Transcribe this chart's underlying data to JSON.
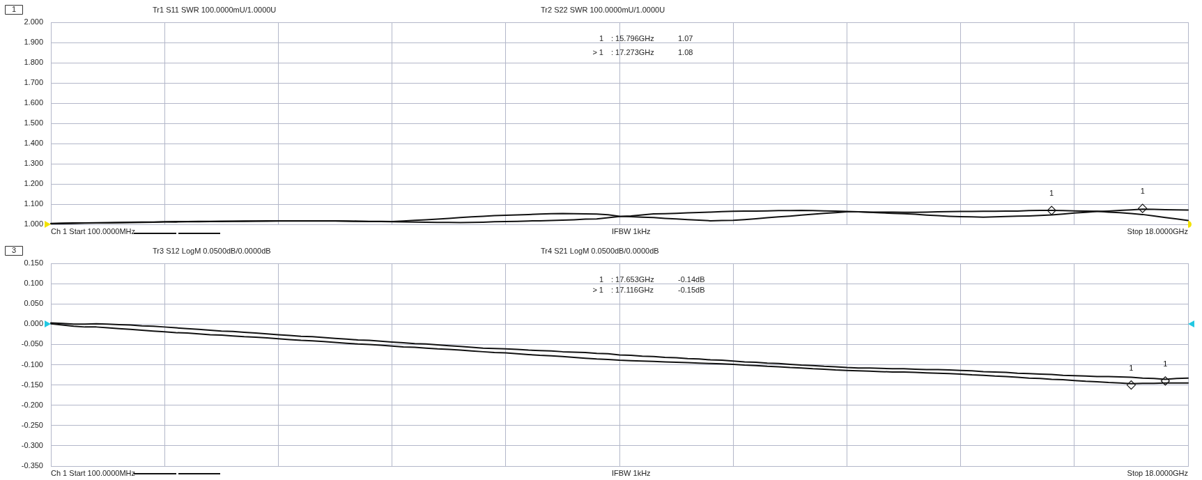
{
  "chart_data": [
    {
      "type": "line",
      "annotations": [
        "1",
        "Tr1 S11 SWR 100.0000mU/1.0000U",
        "Tr2 S22 SWR 100.0000mU/1.0000U",
        "1 : 15.796GHz 1.07",
        "> 1 : 17.273GHz 1.08",
        "Ch 1 Start 100.0000MHz",
        "IFBW 1kHz",
        "Stop 18.0000GHz"
      ],
      "categories": [
        null,
        null,
        null,
        null,
        null,
        null,
        null,
        null,
        null,
        null,
        null,
        null,
        null,
        null,
        null,
        null,
        null,
        null,
        null,
        null,
        null,
        null,
        null,
        null,
        null,
        null,
        null,
        null,
        null,
        null,
        null,
        null,
        null,
        null,
        null,
        null,
        null,
        null,
        null,
        null,
        null,
        null,
        null,
        null,
        null,
        null,
        null,
        null,
        null,
        null,
        null,
        null,
        null,
        null,
        null,
        null,
        null,
        null,
        null,
        null,
        null,
        null,
        null,
        null,
        null,
        null,
        null,
        null,
        null,
        null,
        null,
        null,
        null,
        null,
        null,
        null,
        null,
        null,
        null,
        null,
        null,
        null,
        null,
        null,
        null,
        null,
        null,
        null,
        null,
        null,
        null,
        null,
        null,
        null,
        null,
        null,
        null,
        null,
        null,
        null,
        null
      ],
      "series": [
        {
          "color": "#111111",
          "values": [
            1.006,
            1.007,
            1.008,
            1.008,
            1.009,
            1.01,
            1.011,
            1.012,
            1.013,
            1.013,
            1.014,
            1.015,
            1.015,
            1.016,
            1.016,
            1.017,
            1.017,
            1.018,
            1.018,
            1.019,
            1.019,
            1.019,
            1.019,
            1.019,
            1.019,
            1.019,
            1.018,
            1.017,
            1.016,
            1.016,
            1.015,
            1.018,
            1.021,
            1.024,
            1.027,
            1.031,
            1.035,
            1.038,
            1.041,
            1.044,
            1.046,
            1.048,
            1.05,
            1.052,
            1.054,
            1.055,
            1.054,
            1.053,
            1.052,
            1.049,
            1.041,
            1.039,
            1.037,
            1.035,
            1.031,
            1.028,
            1.025,
            1.022,
            1.019,
            1.02,
            1.021,
            1.025,
            1.029,
            1.034,
            1.038,
            1.042,
            1.047,
            1.051,
            1.056,
            1.059,
            1.063,
            1.063,
            1.062,
            1.062,
            1.062,
            1.061,
            1.061,
            1.062,
            1.063,
            1.064,
            1.065,
            1.065,
            1.066,
            1.066,
            1.067,
            1.067,
            1.069,
            1.07,
            1.07,
            1.069,
            1.068,
            1.067,
            1.066,
            1.062,
            1.059,
            1.055,
            1.05,
            1.043,
            1.035,
            1.028,
            1.02
          ]
        },
        {
          "color": "#111111",
          "values": [
            1.004,
            1.005,
            1.006,
            1.007,
            1.008,
            1.008,
            1.009,
            1.01,
            1.011,
            1.012,
            1.013,
            1.013,
            1.014,
            1.014,
            1.015,
            1.015,
            1.016,
            1.016,
            1.017,
            1.017,
            1.018,
            1.018,
            1.018,
            1.018,
            1.018,
            1.018,
            1.017,
            1.016,
            1.015,
            1.015,
            1.014,
            1.013,
            1.013,
            1.012,
            1.011,
            1.011,
            1.01,
            1.011,
            1.012,
            1.014,
            1.015,
            1.016,
            1.018,
            1.019,
            1.02,
            1.022,
            1.024,
            1.027,
            1.028,
            1.034,
            1.04,
            1.043,
            1.048,
            1.053,
            1.054,
            1.056,
            1.058,
            1.06,
            1.062,
            1.064,
            1.066,
            1.067,
            1.067,
            1.068,
            1.069,
            1.069,
            1.07,
            1.069,
            1.068,
            1.067,
            1.065,
            1.063,
            1.061,
            1.058,
            1.056,
            1.054,
            1.051,
            1.047,
            1.044,
            1.041,
            1.039,
            1.038,
            1.037,
            1.038,
            1.04,
            1.042,
            1.043,
            1.045,
            1.048,
            1.052,
            1.057,
            1.061,
            1.065,
            1.067,
            1.07,
            1.073,
            1.076,
            1.075,
            1.074,
            1.073,
            1.072
          ]
        },
        {
          "type": "scatter",
          "name": "1",
          "color": "#111111",
          "marker": "diamond",
          "values": [
            null,
            null,
            null,
            null,
            null,
            null,
            null,
            null,
            null,
            null,
            null,
            null,
            null,
            null,
            null,
            null,
            null,
            null,
            null,
            null,
            null,
            null,
            null,
            null,
            null,
            null,
            null,
            null,
            null,
            null,
            null,
            null,
            null,
            null,
            null,
            null,
            null,
            null,
            null,
            null,
            null,
            null,
            null,
            null,
            null,
            null,
            null,
            null,
            null,
            null,
            null,
            null,
            null,
            null,
            null,
            null,
            null,
            null,
            null,
            null,
            null,
            null,
            null,
            null,
            null,
            null,
            null,
            null,
            null,
            null,
            null,
            null,
            null,
            null,
            null,
            null,
            null,
            null,
            null,
            null,
            null,
            null,
            null,
            null,
            null,
            null,
            null,
            null,
            1.07,
            null,
            null,
            null,
            null,
            null,
            null,
            null,
            1.08,
            null,
            null,
            null,
            null
          ]
        }
      ],
      "ylim": [
        1,
        2
      ],
      "yticks": [
        {
          "value": 1,
          "label": "1.000"
        },
        {
          "value": 1.1,
          "label": "1.100"
        },
        {
          "value": 1.2,
          "label": "1.200"
        },
        {
          "value": 1.3,
          "label": "1.300"
        },
        {
          "value": 1.4,
          "label": "1.400"
        },
        {
          "value": 1.5,
          "label": "1.500"
        },
        {
          "value": 1.6,
          "label": "1.600"
        },
        {
          "value": 1.7,
          "label": "1.700"
        },
        {
          "value": 1.8,
          "label": "1.800"
        },
        {
          "value": 1.9,
          "label": "1.900"
        },
        {
          "value": 2,
          "label": "2.000"
        }
      ],
      "grid": true,
      "tick_labels": "y"
    },
    {
      "type": "line",
      "annotations": [
        "3",
        "Tr3 S12 LogM 0.0500dB/0.0000dB",
        "Tr4 S21 LogM 0.0500dB/0.0000dB",
        "1 : 17.653GHz -0.14dB",
        "> 1 : 17.116GHz -0.15dB",
        "Ch 1 Start 100.0000MHz",
        "IFBW 1kHz",
        "Stop 18.0000GHz"
      ],
      "categories": [
        null,
        null,
        null,
        null,
        null,
        null,
        null,
        null,
        null,
        null,
        null,
        null,
        null,
        null,
        null,
        null,
        null,
        null,
        null,
        null,
        null,
        null,
        null,
        null,
        null,
        null,
        null,
        null,
        null,
        null,
        null,
        null,
        null,
        null,
        null,
        null,
        null,
        null,
        null,
        null,
        null,
        null,
        null,
        null,
        null,
        null,
        null,
        null,
        null,
        null,
        null,
        null,
        null,
        null,
        null,
        null,
        null,
        null,
        null,
        null,
        null,
        null,
        null,
        null,
        null,
        null,
        null,
        null,
        null,
        null,
        null,
        null,
        null,
        null,
        null,
        null,
        null,
        null,
        null,
        null,
        null,
        null,
        null,
        null,
        null,
        null,
        null,
        null,
        null,
        null,
        null,
        null,
        null,
        null,
        null,
        null,
        null,
        null,
        null,
        null,
        null
      ],
      "series": [
        {
          "color": "#111111",
          "values": [
            0.003,
            0.002,
            0,
            0,
            0.001,
            0,
            -0.001,
            -0.002,
            -0.004,
            -0.005,
            -0.007,
            -0.009,
            -0.011,
            -0.013,
            -0.015,
            -0.017,
            -0.018,
            -0.02,
            -0.022,
            -0.024,
            -0.026,
            -0.028,
            -0.03,
            -0.031,
            -0.033,
            -0.035,
            -0.037,
            -0.039,
            -0.04,
            -0.042,
            -0.044,
            -0.046,
            -0.048,
            -0.049,
            -0.051,
            -0.053,
            -0.055,
            -0.057,
            -0.059,
            -0.06,
            -0.061,
            -0.062,
            -0.064,
            -0.065,
            -0.066,
            -0.068,
            -0.069,
            -0.07,
            -0.072,
            -0.073,
            -0.076,
            -0.077,
            -0.079,
            -0.08,
            -0.082,
            -0.083,
            -0.085,
            -0.086,
            -0.088,
            -0.089,
            -0.091,
            -0.093,
            -0.094,
            -0.096,
            -0.097,
            -0.099,
            -0.101,
            -0.102,
            -0.104,
            -0.105,
            -0.107,
            -0.108,
            -0.108,
            -0.109,
            -0.11,
            -0.11,
            -0.111,
            -0.112,
            -0.112,
            -0.113,
            -0.114,
            -0.115,
            -0.117,
            -0.118,
            -0.119,
            -0.121,
            -0.122,
            -0.123,
            -0.124,
            -0.126,
            -0.127,
            -0.128,
            -0.129,
            -0.129,
            -0.13,
            -0.131,
            -0.133,
            -0.134,
            -0.136,
            -0.134,
            -0.133
          ]
        },
        {
          "color": "#111111",
          "values": [
            0.001,
            -0.002,
            -0.005,
            -0.007,
            -0.007,
            -0.009,
            -0.011,
            -0.013,
            -0.015,
            -0.017,
            -0.019,
            -0.021,
            -0.022,
            -0.024,
            -0.026,
            -0.027,
            -0.029,
            -0.031,
            -0.032,
            -0.034,
            -0.036,
            -0.038,
            -0.04,
            -0.041,
            -0.043,
            -0.045,
            -0.047,
            -0.049,
            -0.05,
            -0.052,
            -0.054,
            -0.056,
            -0.057,
            -0.059,
            -0.061,
            -0.062,
            -0.064,
            -0.066,
            -0.068,
            -0.07,
            -0.071,
            -0.073,
            -0.075,
            -0.077,
            -0.078,
            -0.08,
            -0.082,
            -0.084,
            -0.086,
            -0.087,
            -0.089,
            -0.09,
            -0.091,
            -0.092,
            -0.093,
            -0.094,
            -0.095,
            -0.096,
            -0.097,
            -0.098,
            -0.099,
            -0.101,
            -0.102,
            -0.104,
            -0.105,
            -0.107,
            -0.108,
            -0.11,
            -0.111,
            -0.113,
            -0.114,
            -0.115,
            -0.116,
            -0.117,
            -0.118,
            -0.118,
            -0.119,
            -0.12,
            -0.121,
            -0.122,
            -0.123,
            -0.125,
            -0.126,
            -0.128,
            -0.129,
            -0.131,
            -0.133,
            -0.134,
            -0.136,
            -0.137,
            -0.139,
            -0.141,
            -0.142,
            -0.144,
            -0.145,
            -0.147,
            -0.146,
            -0.146,
            -0.145,
            -0.145,
            -0.145
          ]
        },
        {
          "type": "scatter",
          "name": "1",
          "color": "#111111",
          "marker": "diamond",
          "values": [
            null,
            null,
            null,
            null,
            null,
            null,
            null,
            null,
            null,
            null,
            null,
            null,
            null,
            null,
            null,
            null,
            null,
            null,
            null,
            null,
            null,
            null,
            null,
            null,
            null,
            null,
            null,
            null,
            null,
            null,
            null,
            null,
            null,
            null,
            null,
            null,
            null,
            null,
            null,
            null,
            null,
            null,
            null,
            null,
            null,
            null,
            null,
            null,
            null,
            null,
            null,
            null,
            null,
            null,
            null,
            null,
            null,
            null,
            null,
            null,
            null,
            null,
            null,
            null,
            null,
            null,
            null,
            null,
            null,
            null,
            null,
            null,
            null,
            null,
            null,
            null,
            null,
            null,
            null,
            null,
            null,
            null,
            null,
            null,
            null,
            null,
            null,
            null,
            null,
            null,
            null,
            null,
            null,
            null,
            null,
            -0.15,
            null,
            null,
            -0.14,
            null,
            null
          ]
        }
      ],
      "ylim": [
        -0.35,
        0.15
      ],
      "yticks": [
        {
          "value": -0.35,
          "label": "-0.350"
        },
        {
          "value": -0.3,
          "label": "-0.300"
        },
        {
          "value": -0.25,
          "label": "-0.250"
        },
        {
          "value": -0.2,
          "label": "-0.200"
        },
        {
          "value": -0.15,
          "label": "-0.150"
        },
        {
          "value": -0.1,
          "label": "-0.100"
        },
        {
          "value": -0.05,
          "label": "-0.050"
        },
        {
          "value": 0,
          "label": "0.000"
        },
        {
          "value": 0.05,
          "label": "0.050"
        },
        {
          "value": 0.1,
          "label": "0.100"
        },
        {
          "value": 0.15,
          "label": "0.150"
        }
      ],
      "grid": true,
      "tick_labels": "y"
    }
  ]
}
